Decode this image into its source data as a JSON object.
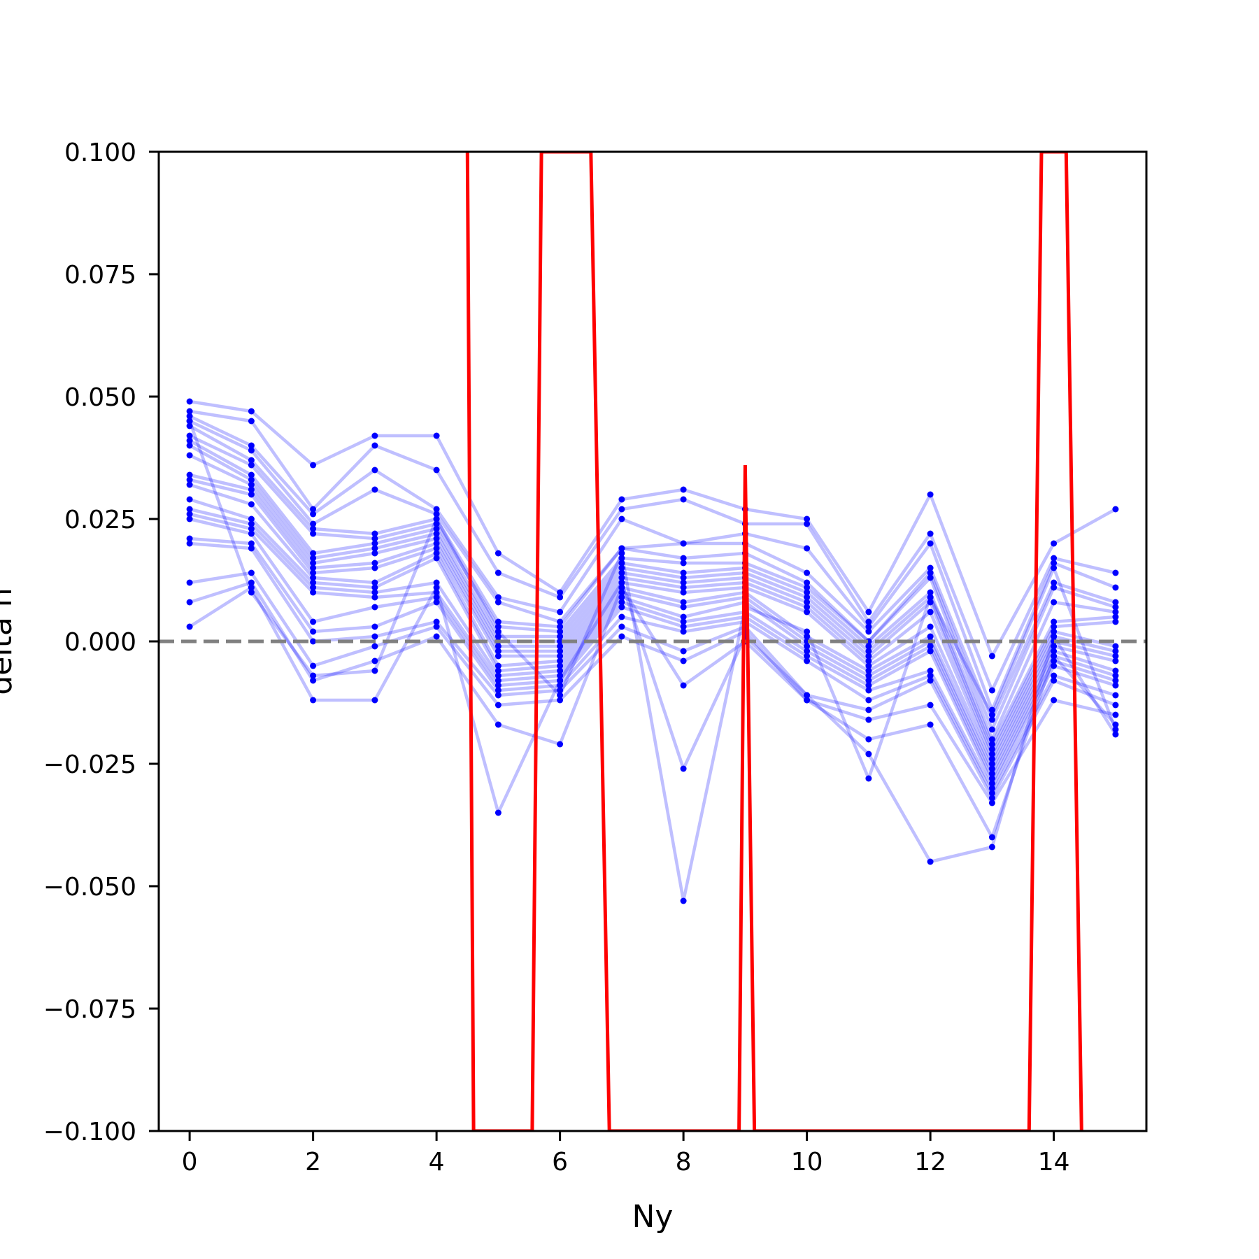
{
  "chart_data": {
    "type": "line",
    "xlabel": "Ny",
    "ylabel": "delta n",
    "xlim": [
      -0.5,
      15.5
    ],
    "ylim": [
      -0.1,
      0.1
    ],
    "x_ticks": [
      0,
      2,
      4,
      6,
      8,
      10,
      12,
      14
    ],
    "x_tick_labels": [
      "0",
      "2",
      "4",
      "6",
      "8",
      "10",
      "12",
      "14"
    ],
    "y_ticks": [
      -0.1,
      -0.075,
      -0.05,
      -0.025,
      0.0,
      0.025,
      0.05,
      0.075,
      0.1
    ],
    "y_tick_labels": [
      "−0.100",
      "−0.075",
      "−0.050",
      "−0.025",
      "0.000",
      "0.025",
      "0.050",
      "0.075",
      "0.100"
    ],
    "reference_line": {
      "y": 0.0,
      "style": "dashed",
      "color": "#808080"
    },
    "grid": false,
    "x": [
      0,
      1,
      2,
      3,
      4,
      5,
      6,
      7,
      8,
      9,
      10,
      11,
      12,
      13,
      14,
      15
    ],
    "series_color": "#0000ff",
    "series": [
      {
        "values": [
          0.049,
          0.047,
          0.036,
          0.042,
          0.042,
          0.018,
          0.01,
          0.029,
          0.031,
          0.027,
          0.025,
          0.006,
          0.03,
          -0.003,
          0.02,
          0.027
        ]
      },
      {
        "values": [
          0.047,
          0.045,
          0.027,
          0.04,
          0.035,
          0.014,
          0.009,
          0.027,
          0.029,
          0.024,
          0.024,
          0.004,
          0.022,
          -0.01,
          0.017,
          0.014
        ]
      },
      {
        "values": [
          0.046,
          0.04,
          0.026,
          0.035,
          0.027,
          0.009,
          0.006,
          0.025,
          0.02,
          0.022,
          0.019,
          0.003,
          0.02,
          -0.014,
          0.016,
          0.011
        ]
      },
      {
        "values": [
          0.045,
          0.039,
          0.024,
          0.031,
          0.026,
          0.008,
          0.004,
          0.019,
          0.02,
          0.02,
          0.014,
          0.002,
          0.015,
          -0.016,
          0.012,
          0.008
        ]
      },
      {
        "values": [
          0.044,
          0.037,
          0.023,
          0.022,
          0.025,
          0.004,
          0.003,
          0.019,
          0.017,
          0.018,
          0.012,
          0.0,
          0.014,
          -0.018,
          0.011,
          0.007
        ]
      },
      {
        "values": [
          0.042,
          0.036,
          0.022,
          0.021,
          0.024,
          0.003,
          0.002,
          0.017,
          0.016,
          0.016,
          0.011,
          0.0,
          0.013,
          -0.02,
          0.008,
          0.006
        ]
      },
      {
        "values": [
          0.041,
          0.034,
          0.018,
          0.02,
          0.023,
          0.001,
          0.001,
          0.016,
          0.014,
          0.015,
          0.01,
          -0.001,
          0.01,
          -0.021,
          0.004,
          0.005
        ]
      },
      {
        "values": [
          0.04,
          0.033,
          0.017,
          0.019,
          0.022,
          0.0,
          0.0,
          0.015,
          0.013,
          0.014,
          0.009,
          -0.002,
          0.009,
          -0.022,
          0.003,
          0.004
        ]
      },
      {
        "values": [
          0.038,
          0.032,
          0.016,
          0.018,
          0.021,
          -0.001,
          -0.001,
          0.014,
          0.012,
          0.013,
          0.008,
          -0.003,
          0.008,
          -0.023,
          0.002,
          -0.001
        ]
      },
      {
        "values": [
          0.034,
          0.031,
          0.015,
          0.016,
          0.02,
          -0.002,
          -0.002,
          0.013,
          0.011,
          0.012,
          0.007,
          -0.004,
          0.006,
          -0.024,
          0.001,
          -0.002
        ]
      },
      {
        "values": [
          0.033,
          0.03,
          0.014,
          0.015,
          0.019,
          -0.003,
          -0.003,
          0.012,
          0.01,
          0.011,
          0.006,
          -0.005,
          0.003,
          -0.025,
          0.0,
          -0.003
        ]
      },
      {
        "values": [
          0.032,
          0.028,
          0.013,
          0.012,
          0.018,
          -0.005,
          -0.004,
          0.011,
          0.008,
          0.01,
          0.001,
          -0.006,
          0.001,
          -0.026,
          -0.001,
          -0.004
        ]
      },
      {
        "values": [
          0.029,
          0.025,
          0.012,
          0.011,
          0.017,
          -0.006,
          -0.005,
          0.01,
          0.007,
          0.009,
          0.0,
          -0.007,
          0.0,
          -0.027,
          -0.002,
          -0.006
        ]
      },
      {
        "values": [
          0.027,
          0.024,
          0.011,
          0.01,
          0.012,
          -0.007,
          -0.006,
          0.009,
          0.005,
          0.008,
          -0.001,
          -0.008,
          -0.001,
          -0.028,
          -0.003,
          -0.007
        ]
      },
      {
        "values": [
          0.026,
          0.023,
          0.01,
          0.009,
          0.01,
          -0.008,
          -0.007,
          0.008,
          0.004,
          0.006,
          -0.002,
          -0.009,
          -0.002,
          -0.029,
          -0.004,
          -0.008
        ]
      },
      {
        "values": [
          0.025,
          0.022,
          0.004,
          0.007,
          0.009,
          -0.009,
          -0.008,
          0.007,
          0.003,
          0.005,
          -0.003,
          -0.01,
          -0.006,
          -0.03,
          -0.005,
          -0.009
        ]
      },
      {
        "values": [
          0.021,
          0.02,
          0.002,
          0.003,
          0.008,
          -0.01,
          -0.009,
          0.005,
          0.002,
          0.004,
          -0.004,
          -0.012,
          -0.007,
          -0.031,
          -0.007,
          -0.011
        ]
      },
      {
        "values": [
          0.02,
          0.019,
          0.0,
          0.001,
          0.004,
          -0.011,
          -0.01,
          0.003,
          -0.002,
          0.003,
          -0.011,
          -0.014,
          -0.008,
          -0.032,
          -0.008,
          -0.013
        ]
      },
      {
        "values": [
          0.012,
          0.014,
          -0.005,
          -0.001,
          0.003,
          -0.013,
          -0.012,
          0.001,
          -0.004,
          0.002,
          -0.012,
          -0.016,
          -0.013,
          -0.033,
          -0.012,
          -0.015
        ]
      },
      {
        "values": [
          0.008,
          0.012,
          -0.008,
          -0.004,
          0.001,
          -0.017,
          -0.021,
          0.011,
          -0.009,
          0.0,
          -0.012,
          -0.02,
          -0.017,
          -0.04,
          -0.003,
          -0.017
        ]
      },
      {
        "values": [
          0.003,
          0.011,
          -0.012,
          -0.012,
          0.011,
          -0.035,
          -0.008,
          0.012,
          -0.026,
          0.001,
          -0.011,
          -0.023,
          -0.045,
          -0.042,
          0.001,
          -0.019
        ]
      },
      {
        "values": [
          0.045,
          0.01,
          -0.007,
          -0.006,
          0.025,
          0.002,
          -0.011,
          0.018,
          -0.053,
          0.007,
          0.002,
          -0.028,
          0.009,
          -0.015,
          0.015,
          -0.018
        ]
      }
    ],
    "red_line": {
      "color": "#ff0000",
      "x": [
        4.5,
        4.6,
        5.55,
        5.7,
        6.5,
        6.8,
        8.9,
        9.0,
        9.15,
        13.6,
        13.8,
        14.2,
        14.45
      ],
      "values": [
        0.1,
        -0.1,
        -0.1,
        0.1,
        0.1,
        -0.1,
        -0.1,
        0.036,
        -0.1,
        -0.1,
        0.1,
        0.1,
        -0.1
      ]
    }
  }
}
